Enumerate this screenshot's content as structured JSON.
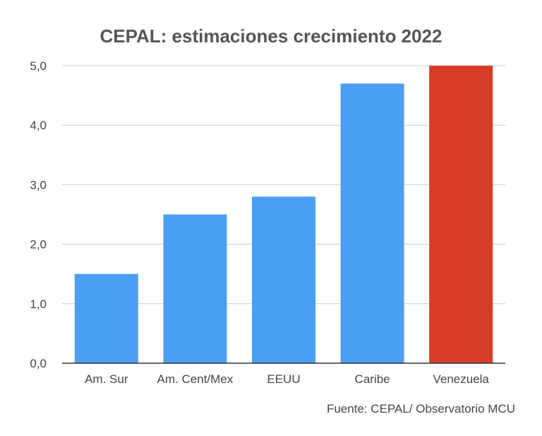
{
  "chart_data": {
    "type": "bar",
    "title": "CEPAL: estimaciones crecimiento 2022",
    "categories": [
      "Am. Sur",
      "Am. Cent/Mex",
      "EEUU",
      "Caribe",
      "Venezuela"
    ],
    "values": [
      1.5,
      2.5,
      2.8,
      4.7,
      5.0
    ],
    "bar_colors": [
      "#4a9ff5",
      "#4a9ff5",
      "#4a9ff5",
      "#4a9ff5",
      "#d63c28"
    ],
    "ylim": [
      0,
      5
    ],
    "yticks": [
      0,
      1,
      2,
      3,
      4,
      5
    ],
    "ytick_labels": [
      "0,0",
      "1,0",
      "2,0",
      "3,0",
      "4,0",
      "5,0"
    ],
    "grid": true,
    "legend": "none",
    "xlabel": "",
    "ylabel": ""
  },
  "source_note": "Fuente: CEPAL/ Observatorio MCU",
  "colors": {
    "primary_bar": "#4a9ff5",
    "highlight_bar": "#d63c28",
    "grid": "#cccccc",
    "axis": "#333333",
    "text": "#444444"
  }
}
